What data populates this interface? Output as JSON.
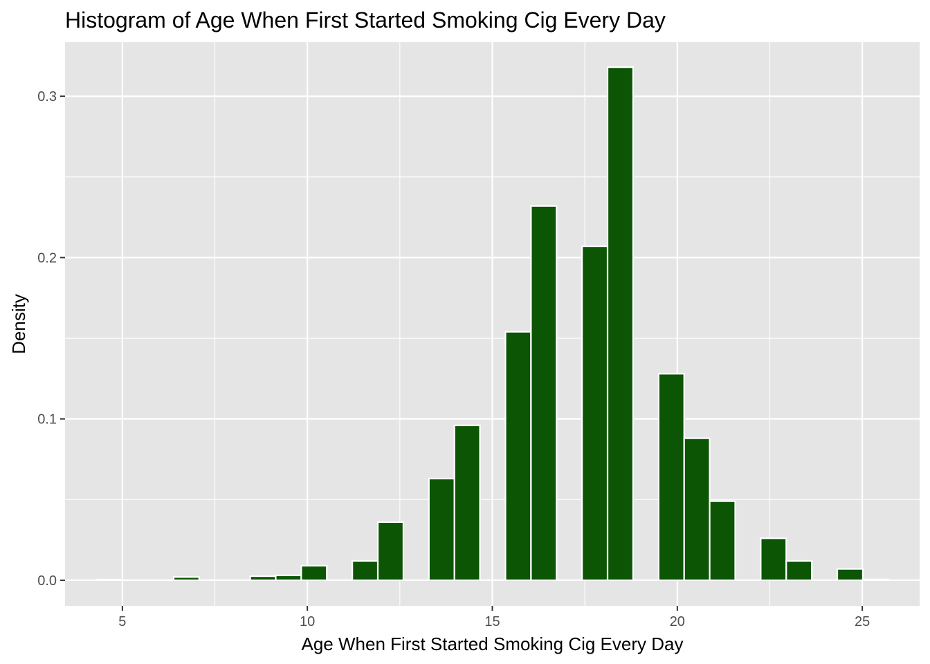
{
  "chart_data": {
    "type": "bar",
    "title": "Histogram of Age When First Started Smoking Cig Every Day",
    "xlabel": "Age When First Started Smoking Cig Every Day",
    "ylabel": "Density",
    "xlim": [
      3.45,
      26.55
    ],
    "ylim": [
      -0.0159,
      0.3335
    ],
    "x_ticks": [
      5,
      10,
      15,
      20,
      25
    ],
    "x_tick_labels": [
      "5",
      "10",
      "15",
      "20",
      "25"
    ],
    "y_ticks": [
      0.0,
      0.1,
      0.2,
      0.3
    ],
    "y_tick_labels": [
      "0.0",
      "0.1",
      "0.2",
      "0.3"
    ],
    "x_minor_breaks": [
      7.5,
      12.5,
      17.5,
      22.5
    ],
    "y_minor_breaks": [
      0.05,
      0.15,
      0.25
    ],
    "grid": true,
    "bin_width": 0.69,
    "bins": [
      {
        "x": 4.66,
        "density": 0.0004
      },
      {
        "x": 5.35,
        "density": 0.0
      },
      {
        "x": 6.04,
        "density": 0.0
      },
      {
        "x": 6.73,
        "density": 0.002
      },
      {
        "x": 7.42,
        "density": 0.0
      },
      {
        "x": 8.11,
        "density": 0.0
      },
      {
        "x": 8.8,
        "density": 0.0025
      },
      {
        "x": 9.49,
        "density": 0.003
      },
      {
        "x": 10.18,
        "density": 0.009
      },
      {
        "x": 10.87,
        "density": 0.0
      },
      {
        "x": 11.56,
        "density": 0.012
      },
      {
        "x": 12.25,
        "density": 0.036
      },
      {
        "x": 12.94,
        "density": 0.0
      },
      {
        "x": 13.63,
        "density": 0.063
      },
      {
        "x": 14.32,
        "density": 0.096
      },
      {
        "x": 15.01,
        "density": 0.0
      },
      {
        "x": 15.7,
        "density": 0.154
      },
      {
        "x": 16.39,
        "density": 0.232
      },
      {
        "x": 17.08,
        "density": 0.0
      },
      {
        "x": 17.77,
        "density": 0.207
      },
      {
        "x": 18.46,
        "density": 0.318
      },
      {
        "x": 19.15,
        "density": 0.0
      },
      {
        "x": 19.84,
        "density": 0.128
      },
      {
        "x": 20.53,
        "density": 0.088
      },
      {
        "x": 21.22,
        "density": 0.049
      },
      {
        "x": 21.91,
        "density": 0.0
      },
      {
        "x": 22.6,
        "density": 0.026
      },
      {
        "x": 23.29,
        "density": 0.012
      },
      {
        "x": 23.98,
        "density": 0.0
      },
      {
        "x": 24.67,
        "density": 0.007
      },
      {
        "x": 25.36,
        "density": 0.0005
      }
    ],
    "colors": {
      "bar_fill": "#0B5504",
      "bar_outline": "#ffffff",
      "panel_background": "#E5E5E5",
      "grid": "#ffffff",
      "tick_text": "#4D4D4D",
      "tick_mark": "#333333"
    }
  }
}
